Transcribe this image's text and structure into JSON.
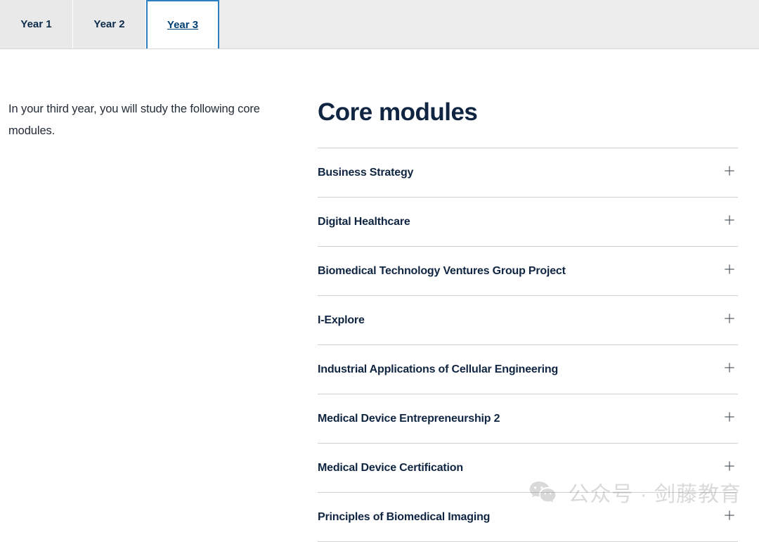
{
  "tabs": [
    {
      "label": "Year 1",
      "active": false
    },
    {
      "label": "Year 2",
      "active": false
    },
    {
      "label": "Year 3",
      "active": true
    }
  ],
  "intro": "In your third year, you will study the following core modules.",
  "section_title": "Core modules",
  "modules": [
    {
      "label": "Business Strategy"
    },
    {
      "label": "Digital Healthcare"
    },
    {
      "label": "Biomedical Technology Ventures Group Project"
    },
    {
      "label": "I-Explore"
    },
    {
      "label": "Industrial Applications of Cellular Engineering"
    },
    {
      "label": "Medical Device Entrepreneurship 2"
    },
    {
      "label": "Medical Device Certification"
    },
    {
      "label": "Principles of Biomedical Imaging"
    }
  ],
  "watermark": {
    "prefix": "公众号 ·",
    "brand": "剑藤教育"
  },
  "colors": {
    "text_primary": "#102541",
    "tab_active_border": "#2a7ec2",
    "tab_inactive_bg": "#e9e9e9",
    "divider": "#d0d0d0"
  }
}
